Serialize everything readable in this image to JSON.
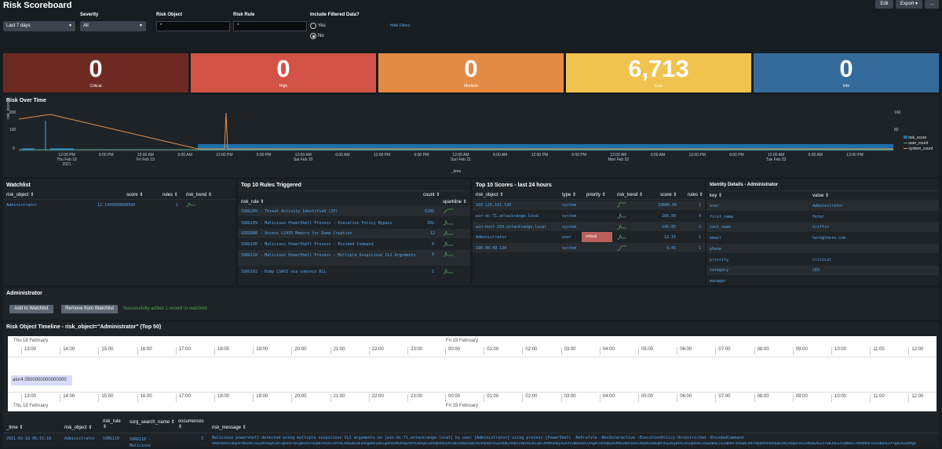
{
  "header": {
    "title": "Risk Scoreboard",
    "edit_label": "Edit",
    "export_label": "Export",
    "more_label": "..."
  },
  "filters": {
    "time": {
      "value": "Last 7 days"
    },
    "severity": {
      "label": "Severity",
      "value": "All"
    },
    "risk_object": {
      "label": "Risk Object",
      "value": "*"
    },
    "risk_rule": {
      "label": "Risk Rule",
      "value": "*"
    },
    "include_filtered": {
      "label": "Include Filtered Data?",
      "yes": "Yes",
      "no": "No",
      "selected": "No"
    },
    "hide_filters": "Hide Filters"
  },
  "singles": [
    {
      "value": "0",
      "label": "Critical",
      "color": "#6d2a23"
    },
    {
      "value": "0",
      "label": "High",
      "color": "#d35446"
    },
    {
      "value": "0",
      "label": "Medium",
      "color": "#e38a45"
    },
    {
      "value": "6,713",
      "label": "Low",
      "color": "#f0c34e"
    },
    {
      "value": "0",
      "label": "Info",
      "color": "#346b9b"
    }
  ],
  "risk_over_time": {
    "title": "Risk Over Time",
    "ylabel": "risk_score",
    "xlabel": "_time",
    "y_left_ticks": [
      "200",
      "100",
      "0"
    ],
    "y_right_ticks": [
      "160",
      "80"
    ],
    "x_ticks": [
      [
        "12:00 PM",
        "Thu Feb 18",
        "2021"
      ],
      [
        "6:00 PM",
        "",
        ""
      ],
      [
        "12:00 AM",
        "Fri Feb 19",
        ""
      ],
      [
        "6:00 AM",
        "",
        ""
      ],
      [
        "12:00 PM",
        "",
        ""
      ],
      [
        "6:00 PM",
        "",
        ""
      ],
      [
        "12:00 AM",
        "Sat Feb 20",
        ""
      ],
      [
        "6:00 AM",
        "",
        ""
      ],
      [
        "12:00 PM",
        "",
        ""
      ],
      [
        "6:00 PM",
        "",
        ""
      ],
      [
        "12:00 AM",
        "Sun Feb 21",
        ""
      ],
      [
        "6:00 AM",
        "",
        ""
      ],
      [
        "12:00 PM",
        "",
        ""
      ],
      [
        "6:00 PM",
        "",
        ""
      ],
      [
        "12:00 AM",
        "Mon Feb 22",
        ""
      ],
      [
        "6:00 AM",
        "",
        ""
      ],
      [
        "12:00 PM",
        "",
        ""
      ],
      [
        "6:00 PM",
        "",
        ""
      ],
      [
        "12:00 AM",
        "Tue Feb 23",
        ""
      ],
      [
        "6:00 AM",
        "",
        ""
      ],
      [
        "12:00 PM",
        "",
        ""
      ]
    ],
    "legend": [
      {
        "name": "risk_score",
        "color": "#1d6eac"
      },
      {
        "name": "user_count",
        "color": "#4fa484"
      },
      {
        "name": "system_count",
        "color": "#e6914c"
      }
    ]
  },
  "watchlist": {
    "title": "Watchlist",
    "columns": [
      "risk_object",
      "score",
      "rules",
      "risk_trend"
    ],
    "rows": [
      {
        "risk_object": "Administrator",
        "score": "12.1499999999999",
        "rules": "1"
      }
    ]
  },
  "top_rules": {
    "title": "Top 10 Rules Triggered",
    "columns": [
      "risk_rule",
      "count",
      "sparkline"
    ],
    "rows": [
      {
        "rule": "SSRG209 - Threat Activity Identified (IP)",
        "count": "6289"
      },
      {
        "rule": "SSRG109 - Malicious PowerShell Process - Execution Policy Bypass",
        "count": "392"
      },
      {
        "rule": "SSRG080 - Access LSASS Memory for Dump Creation",
        "count": "12"
      },
      {
        "rule": "SSRG108 - Malicious PowerShell Process - Encoded Command",
        "count": "9"
      },
      {
        "rule": "SSRG110 - Malicious PowerShell Process - Multiple Suspicious CLI Arguments",
        "count": "9"
      },
      {
        "rule": "SSRG102 - Dump LSASS via comsvcs DLL",
        "count": "2"
      }
    ]
  },
  "top_scores": {
    "title": "Top 10 Scores - last 24 hours",
    "columns": [
      "risk_object",
      "type",
      "priority",
      "risk_trend",
      "score",
      "rules"
    ],
    "rows": [
      {
        "risk_object": "103.125.191.136",
        "type": "system",
        "priority": "",
        "score": "19840.90",
        "rules": "1"
      },
      {
        "risk_object": "win-dc-71.attackrange.local",
        "type": "system",
        "priority": "",
        "score": "289.80",
        "rules": "4"
      },
      {
        "risk_object": "win-host-334.attackrange.local",
        "type": "system",
        "priority": "",
        "score": "145.95",
        "rules": "2"
      },
      {
        "risk_object": "Administrator",
        "type": "user",
        "priority": "critical",
        "score": "12.15",
        "rules": "1"
      },
      {
        "risk_object": "190.90.49.134",
        "type": "system",
        "priority": "",
        "score": "9.45",
        "rules": "1"
      }
    ]
  },
  "identity": {
    "title": "Identity Details - Administrator",
    "columns": [
      "key",
      "value"
    ],
    "rows": [
      {
        "key": "user",
        "value": "Administrator"
      },
      {
        "key": "first_name",
        "value": "Peter"
      },
      {
        "key": "last_name",
        "value": "Griffin"
      },
      {
        "key": "email",
        "value": "here@there.com"
      },
      {
        "key": "phone",
        "value": ""
      },
      {
        "key": "priority",
        "value": "critical"
      },
      {
        "key": "category",
        "value": "CEO"
      },
      {
        "key": "manager",
        "value": ""
      }
    ]
  },
  "admin": {
    "title": "Administrator",
    "add_label": "Add to Watchlist",
    "remove_label": "Remove from Watchlist",
    "status": "Successfully added 1 record to watchlist"
  },
  "timeline": {
    "title": "Risk Object Timeline - risk_object=\"Administrator\" (Top 50)",
    "day1": "Thu 18 February",
    "day2": "Fri 19 February",
    "ticks_day1": [
      "13:00",
      "14:00",
      "15:00",
      "16:00",
      "17:00",
      "18:00",
      "19:00",
      "20:00",
      "21:00",
      "22:00",
      "23:00"
    ],
    "ticks_day2": [
      "00:00",
      "01:00",
      "02:00",
      "03:00",
      "04:00",
      "05:00",
      "06:00",
      "07:00",
      "08:00",
      "09:00",
      "10:00",
      "11:00",
      "12:00"
    ],
    "item": "ator4.0500000000000000"
  },
  "events": {
    "columns": [
      "_time",
      "risk_object",
      "risk_rule",
      "ssrg_search_name",
      "occurrences",
      "risk_message"
    ],
    "rows": [
      {
        "time": "2021-02-18 05:15:18",
        "risk_object": "Administrator",
        "risk_rule": "SSRG110",
        "search_name": "SSRG110 - Malicious",
        "occurrences": "3",
        "message": "Malicious powershell detected  using multiple suspicious CLI arguments on [win-dc-71.attackrange.local] by user [Administrator] using process [PowerShell -NoProfile -NonInteractive -ExecutionPolicy Unrestricted -EncodedCommand",
        "message2": "UABhAHkAZQBpAFMAaABlAGwAbAAgACBATgBvAFAAcgBvAGYAaQBsAGUAIAAtAE4AbwBuAEkAbgB0AGUAcgBhAGMAdABpAHYAZQAgAC0ARQB4AGUAYwB1AHQAaQBvAG4AUABvAGwAaQBjAHkAIABVAG4AcgBlAHMAdAByAGkAYwB0AGUAZAAgAC0ARQBuAGMAbwBkAGUAZABDAG8AbQBtAGEAbgBkACAASgBnAEIAawBBAEcAZwBBAFkAdwBCAHcAQQBHADQAQQBZAHcAQgBlAEEARwBwAEEAYwB3AEEAZQBBAEcAMABBAFkAZwBkAEEAYgBuAEQAMgB"
      }
    ]
  }
}
